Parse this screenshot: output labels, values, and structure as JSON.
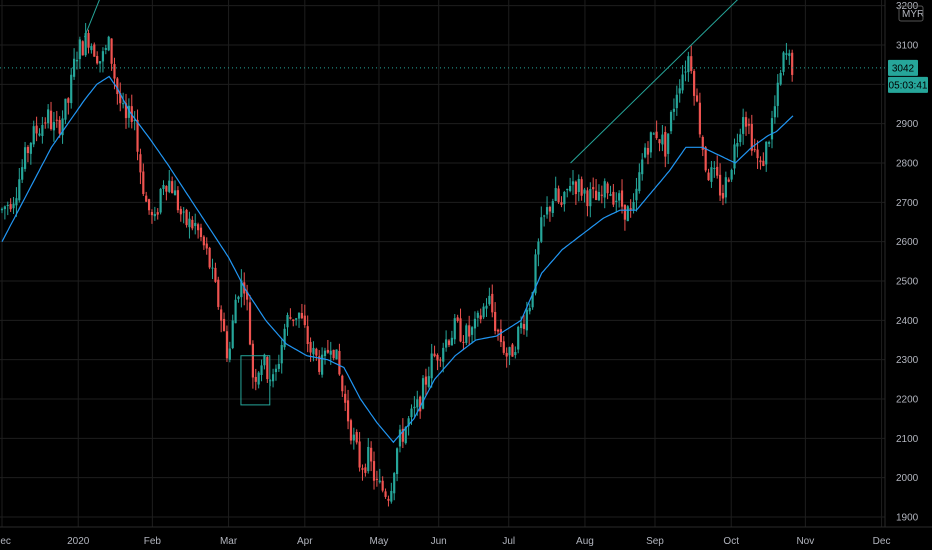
{
  "chart_data": {
    "type": "candlestick",
    "currency": "MYR",
    "last_price_label": "3042",
    "countdown_label": "05:03:41",
    "y_ticks": [
      1900,
      2000,
      2100,
      2200,
      2300,
      2400,
      2500,
      2600,
      2700,
      2800,
      2900,
      3000,
      3100,
      3200
    ],
    "y_range": [
      1865,
      3210
    ],
    "x_ticks": [
      "Dec",
      "2020",
      "Feb",
      "Mar",
      "Apr",
      "May",
      "Jun",
      "Jul",
      "Aug",
      "Sep",
      "Oct",
      "Nov",
      "Dec"
    ],
    "x_range_days": [
      0,
      384
    ],
    "x_tick_days": [
      0,
      37,
      73,
      110,
      147,
      183,
      212,
      246,
      283,
      317,
      354,
      390,
      427
    ],
    "grid": true,
    "colors": {
      "background": "#000000",
      "up": "#26a69a",
      "down": "#ef5350",
      "moving_average": "#2196f3",
      "trendline": "#26a69a",
      "price_label": "#26a69a",
      "grid": "#1e1e1e"
    },
    "moving_average_anchors": [
      [
        0,
        2600
      ],
      [
        8,
        2680
      ],
      [
        16,
        2760
      ],
      [
        24,
        2840
      ],
      [
        32,
        2900
      ],
      [
        40,
        2960
      ],
      [
        46,
        3000
      ],
      [
        52,
        3020
      ],
      [
        56,
        2990
      ],
      [
        62,
        2930
      ],
      [
        72,
        2860
      ],
      [
        80,
        2800
      ],
      [
        90,
        2720
      ],
      [
        100,
        2640
      ],
      [
        110,
        2560
      ],
      [
        118,
        2480
      ],
      [
        128,
        2400
      ],
      [
        138,
        2340
      ],
      [
        148,
        2310
      ],
      [
        158,
        2300
      ],
      [
        166,
        2280
      ],
      [
        174,
        2200
      ],
      [
        182,
        2140
      ],
      [
        190,
        2090
      ],
      [
        200,
        2150
      ],
      [
        210,
        2250
      ],
      [
        220,
        2310
      ],
      [
        230,
        2350
      ],
      [
        240,
        2360
      ],
      [
        252,
        2400
      ],
      [
        262,
        2520
      ],
      [
        272,
        2580
      ],
      [
        282,
        2620
      ],
      [
        292,
        2660
      ],
      [
        300,
        2680
      ],
      [
        308,
        2680
      ],
      [
        316,
        2730
      ],
      [
        324,
        2780
      ],
      [
        332,
        2840
      ],
      [
        340,
        2840
      ],
      [
        348,
        2820
      ],
      [
        356,
        2800
      ],
      [
        364,
        2840
      ],
      [
        372,
        2870
      ],
      [
        376,
        2880
      ],
      [
        384,
        2920
      ]
    ],
    "price_anchors": [
      [
        0,
        2680
      ],
      [
        6,
        2720
      ],
      [
        14,
        2860
      ],
      [
        22,
        2920
      ],
      [
        26,
        2880
      ],
      [
        32,
        2950
      ],
      [
        36,
        3080
      ],
      [
        42,
        3120
      ],
      [
        48,
        3060
      ],
      [
        52,
        3100
      ],
      [
        56,
        2980
      ],
      [
        60,
        2900
      ],
      [
        64,
        2940
      ],
      [
        66,
        2820
      ],
      [
        70,
        2700
      ],
      [
        74,
        2640
      ],
      [
        78,
        2760
      ],
      [
        82,
        2750
      ],
      [
        88,
        2650
      ],
      [
        94,
        2640
      ],
      [
        100,
        2560
      ],
      [
        106,
        2420
      ],
      [
        110,
        2300
      ],
      [
        114,
        2480
      ],
      [
        118,
        2500
      ],
      [
        122,
        2250
      ],
      [
        126,
        2300
      ],
      [
        132,
        2240
      ],
      [
        138,
        2400
      ],
      [
        144,
        2420
      ],
      [
        150,
        2320
      ],
      [
        156,
        2280
      ],
      [
        160,
        2360
      ],
      [
        166,
        2200
      ],
      [
        170,
        2110
      ],
      [
        174,
        2030
      ],
      [
        178,
        2050
      ],
      [
        182,
        1980
      ],
      [
        188,
        1960
      ],
      [
        192,
        2080
      ],
      [
        196,
        2130
      ],
      [
        202,
        2180
      ],
      [
        208,
        2290
      ],
      [
        214,
        2340
      ],
      [
        220,
        2380
      ],
      [
        226,
        2360
      ],
      [
        230,
        2380
      ],
      [
        236,
        2460
      ],
      [
        240,
        2380
      ],
      [
        246,
        2300
      ],
      [
        250,
        2360
      ],
      [
        256,
        2440
      ],
      [
        262,
        2640
      ],
      [
        268,
        2720
      ],
      [
        272,
        2680
      ],
      [
        276,
        2760
      ],
      [
        280,
        2740
      ],
      [
        284,
        2720
      ],
      [
        290,
        2700
      ],
      [
        294,
        2740
      ],
      [
        300,
        2700
      ],
      [
        306,
        2660
      ],
      [
        312,
        2840
      ],
      [
        318,
        2880
      ],
      [
        322,
        2840
      ],
      [
        328,
        3000
      ],
      [
        334,
        3080
      ],
      [
        338,
        2920
      ],
      [
        342,
        2780
      ],
      [
        346,
        2760
      ],
      [
        350,
        2720
      ],
      [
        354,
        2800
      ],
      [
        360,
        2940
      ],
      [
        364,
        2860
      ],
      [
        368,
        2780
      ],
      [
        372,
        2860
      ],
      [
        376,
        2960
      ],
      [
        380,
        3080
      ],
      [
        384,
        3042
      ]
    ]
  }
}
